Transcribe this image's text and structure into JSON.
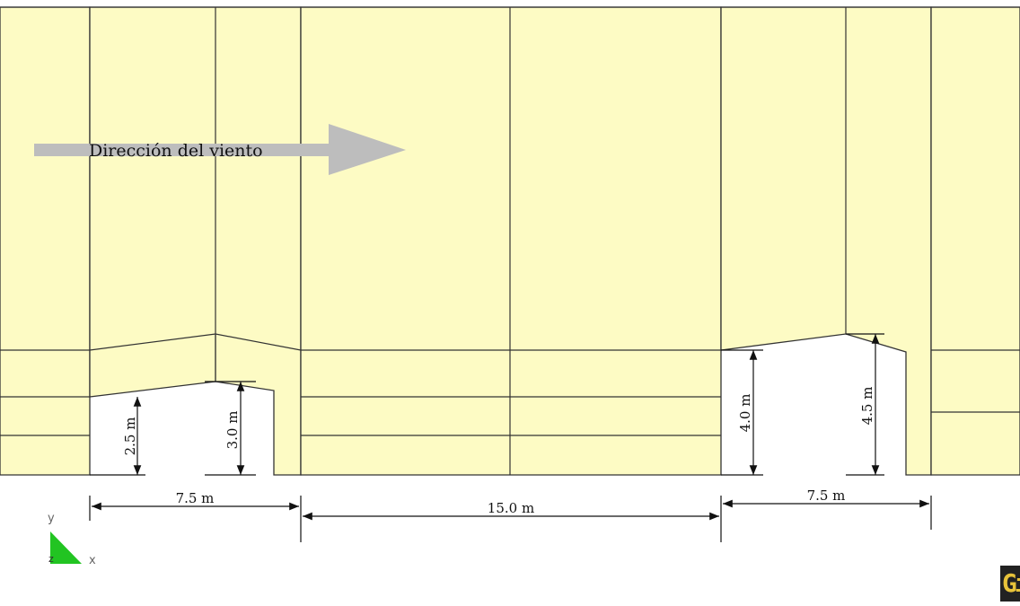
{
  "wind_label": "Dirección del viento",
  "dims": {
    "h1": "2.5 m",
    "h2": "3.0 m",
    "h3": "4.0 m",
    "h4": "4.5 m",
    "w1": "7.5 m",
    "w2": "15.0 m",
    "w3": "7.5 m"
  },
  "axes": {
    "y": "y",
    "z": "z",
    "x": "x"
  },
  "logo_text": "GiD",
  "colors": {
    "fill": "#fdfbc4",
    "line": "#333333",
    "arrow": "#bdbdbd",
    "axis_triangle": "#22c422"
  }
}
